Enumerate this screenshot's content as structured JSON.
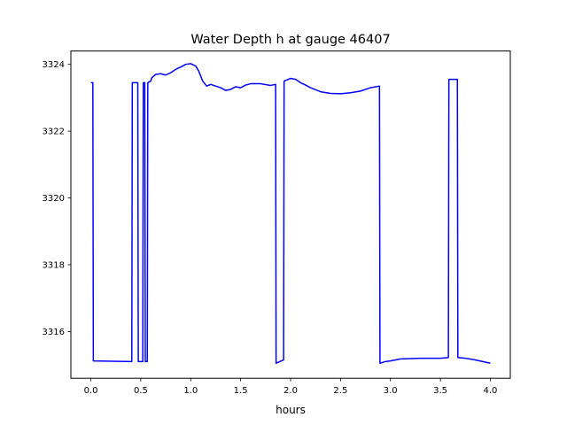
{
  "chart_data": {
    "type": "line",
    "title": "Water Depth h at gauge 46407",
    "xlabel": "hours",
    "ylabel": "",
    "xlim": [
      -0.2,
      4.2
    ],
    "ylim": [
      3314.6,
      3324.4
    ],
    "xticks": [
      0.0,
      0.5,
      1.0,
      1.5,
      2.0,
      2.5,
      3.0,
      3.5,
      4.0
    ],
    "xtick_labels": [
      "0.0",
      "0.5",
      "1.0",
      "1.5",
      "2.0",
      "2.5",
      "3.0",
      "3.5",
      "4.0"
    ],
    "yticks": [
      3316,
      3318,
      3320,
      3322,
      3324
    ],
    "ytick_labels": [
      "3316",
      "3318",
      "3320",
      "3322",
      "3324"
    ],
    "grid": false,
    "series": [
      {
        "color": "#0000ff",
        "x": [
          0.0,
          0.02,
          0.025,
          0.41,
          0.415,
          0.47,
          0.475,
          0.52,
          0.525,
          0.54,
          0.545,
          0.565,
          0.57,
          0.6,
          0.61,
          0.65,
          0.7,
          0.75,
          0.8,
          0.85,
          0.9,
          0.95,
          1.0,
          1.05,
          1.08,
          1.12,
          1.16,
          1.2,
          1.25,
          1.3,
          1.35,
          1.4,
          1.45,
          1.5,
          1.55,
          1.6,
          1.7,
          1.8,
          1.85,
          1.855,
          1.93,
          1.935,
          2.0,
          2.05,
          2.1,
          2.15,
          2.2,
          2.3,
          2.4,
          2.5,
          2.6,
          2.7,
          2.8,
          2.89,
          2.895,
          2.95,
          3.0,
          3.1,
          3.3,
          3.5,
          3.58,
          3.585,
          3.67,
          3.675,
          3.75,
          3.85,
          4.0
        ],
        "y": [
          3323.45,
          3323.45,
          3315.12,
          3315.1,
          3323.45,
          3323.45,
          3315.1,
          3315.1,
          3323.45,
          3323.45,
          3315.1,
          3315.1,
          3323.45,
          3323.5,
          3323.6,
          3323.7,
          3323.72,
          3323.68,
          3323.75,
          3323.85,
          3323.92,
          3324.0,
          3324.02,
          3323.95,
          3323.8,
          3323.5,
          3323.35,
          3323.4,
          3323.35,
          3323.3,
          3323.22,
          3323.25,
          3323.33,
          3323.3,
          3323.38,
          3323.42,
          3323.42,
          3323.37,
          3323.4,
          3315.05,
          3315.15,
          3323.5,
          3323.58,
          3323.55,
          3323.45,
          3323.38,
          3323.3,
          3323.18,
          3323.13,
          3323.12,
          3323.15,
          3323.2,
          3323.3,
          3323.35,
          3315.05,
          3315.1,
          3315.12,
          3315.18,
          3315.2,
          3315.2,
          3315.22,
          3323.55,
          3323.55,
          3315.22,
          3315.2,
          3315.15,
          3315.05
        ]
      }
    ]
  }
}
